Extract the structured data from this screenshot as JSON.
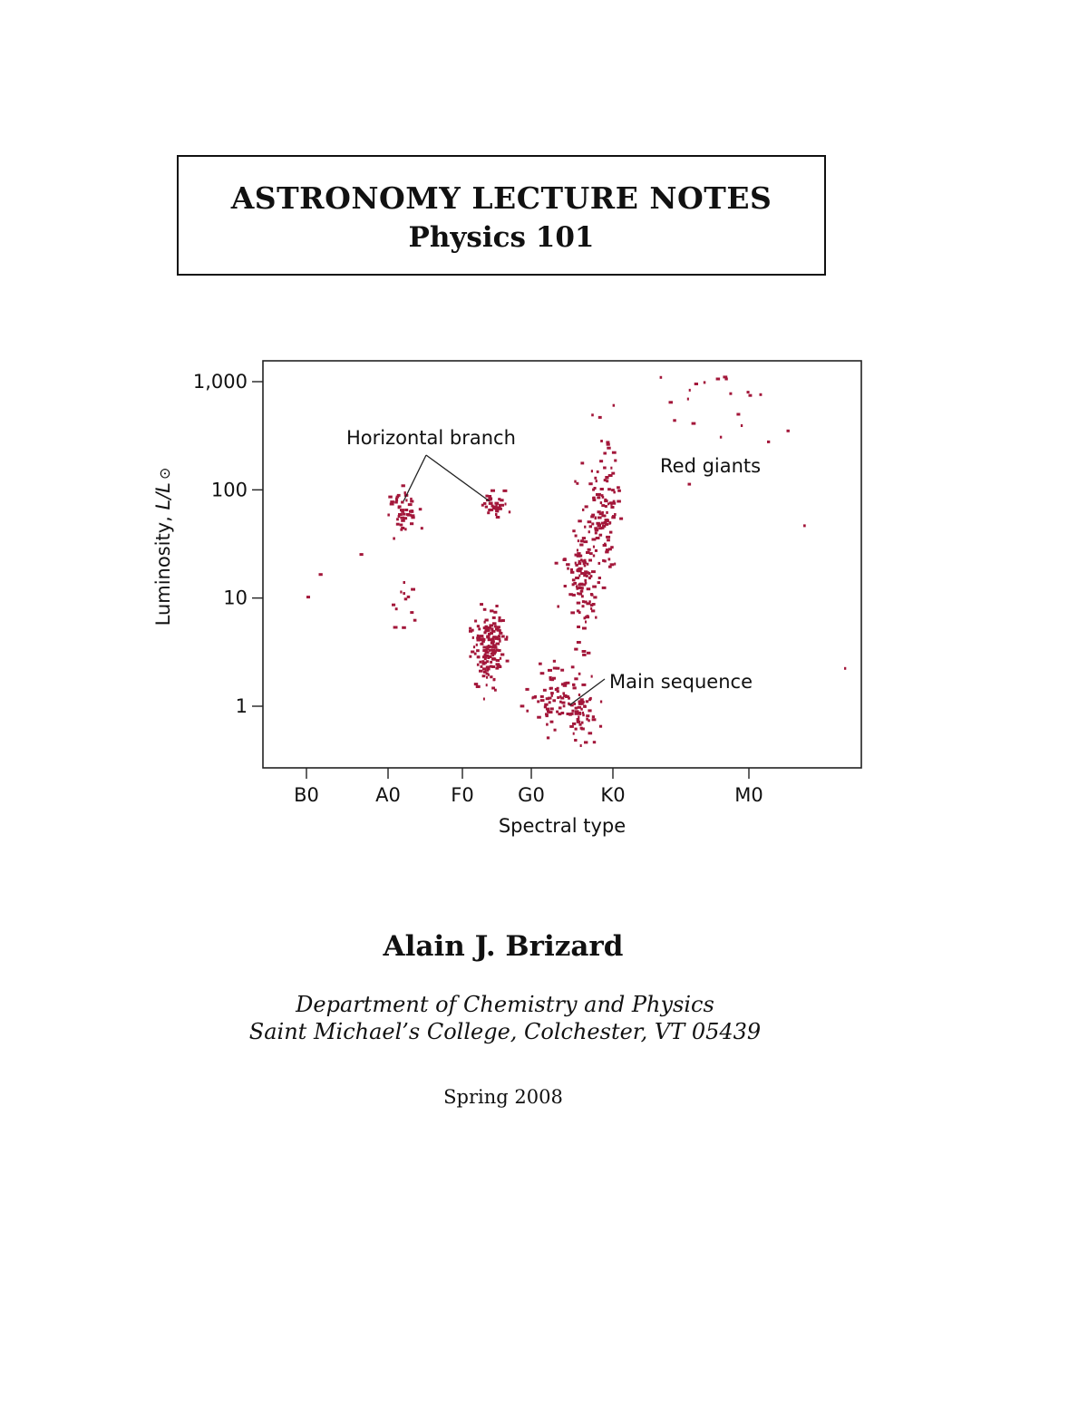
{
  "title": {
    "main": "ASTRONOMY LECTURE NOTES",
    "course": "Physics 101"
  },
  "chart_data": {
    "type": "scatter",
    "xlabel": "Spectral type",
    "ylabel_main": "Luminosity, ",
    "ylabel_italic": "L/L",
    "ylabel_symbol": "⊙",
    "x_ticks": [
      "B0",
      "A0",
      "F0",
      "G0",
      "K0",
      "M0"
    ],
    "y_scale": "log",
    "y_ticks": [
      {
        "value": 1,
        "label": "1"
      },
      {
        "value": 10,
        "label": "10"
      },
      {
        "value": 100,
        "label": "100"
      },
      {
        "value": 1000,
        "label": "1,000"
      }
    ],
    "ylim": [
      0.4,
      1200
    ],
    "annotations": {
      "horizontal_branch": "Horizontal branch",
      "red_giants": "Red giants",
      "main_sequence": "Main sequence"
    },
    "point_color": "#a3173a",
    "grid": false,
    "clusters": [
      {
        "spectral_class": "A",
        "center_subclass": 1.6,
        "luminosity": 62,
        "spread_subclass": 1.0,
        "spread_log": 0.12,
        "count": 45
      },
      {
        "spectral_class": "F",
        "center_subclass": 4.5,
        "luminosity": 75,
        "spread_subclass": 0.8,
        "spread_log": 0.06,
        "count": 35
      },
      {
        "spectral_class": "F",
        "center_subclass": 3.5,
        "luminosity": 3.5,
        "spread_subclass": 1.2,
        "spread_log": 0.18,
        "count": 150
      },
      {
        "spectral_class": "G",
        "center_subclass": 2.5,
        "luminosity": 1.3,
        "spread_subclass": 1.3,
        "spread_log": 0.15,
        "count": 70
      },
      {
        "spectral_class": "G",
        "center_subclass": 6.0,
        "luminosity": 0.8,
        "spread_subclass": 1.0,
        "spread_log": 0.12,
        "count": 55
      },
      {
        "spectral_class": "G",
        "center_subclass": 6.0,
        "luminosity": 15,
        "spread_subclass": 1.0,
        "spread_log": 0.3,
        "count": 120
      },
      {
        "spectral_class": "G",
        "center_subclass": 8.5,
        "luminosity": 80,
        "spread_subclass": 1.0,
        "spread_log": 0.3,
        "count": 110
      },
      {
        "spectral_class": "K",
        "center_subclass": 8.0,
        "luminosity": 700,
        "spread_subclass": 2.5,
        "spread_log": 0.2,
        "count": 20
      },
      {
        "spectral_class": "A",
        "center_subclass": 2.0,
        "luminosity": 8,
        "spread_subclass": 0.6,
        "spread_log": 0.15,
        "count": 12
      }
    ],
    "isolated_points": [
      {
        "spectral_class": "B",
        "subclass": 0.0,
        "luminosity": 10.5
      },
      {
        "spectral_class": "B",
        "subclass": 6.5,
        "luminosity": 26
      },
      {
        "spectral_class": "B",
        "subclass": 1.5,
        "luminosity": 17
      },
      {
        "spectral_class": "M",
        "subclass": 7.0,
        "luminosity": 2.3
      },
      {
        "spectral_class": "M",
        "subclass": 4.0,
        "luminosity": 48
      },
      {
        "spectral_class": "K",
        "subclass": 5.5,
        "luminosity": 116
      }
    ]
  },
  "author": "Alain J. Brizard",
  "affiliation": {
    "line1": "Department of Chemistry and Physics",
    "line2": "Saint Michael’s College, Colchester, VT 05439"
  },
  "date": "Spring 2008"
}
